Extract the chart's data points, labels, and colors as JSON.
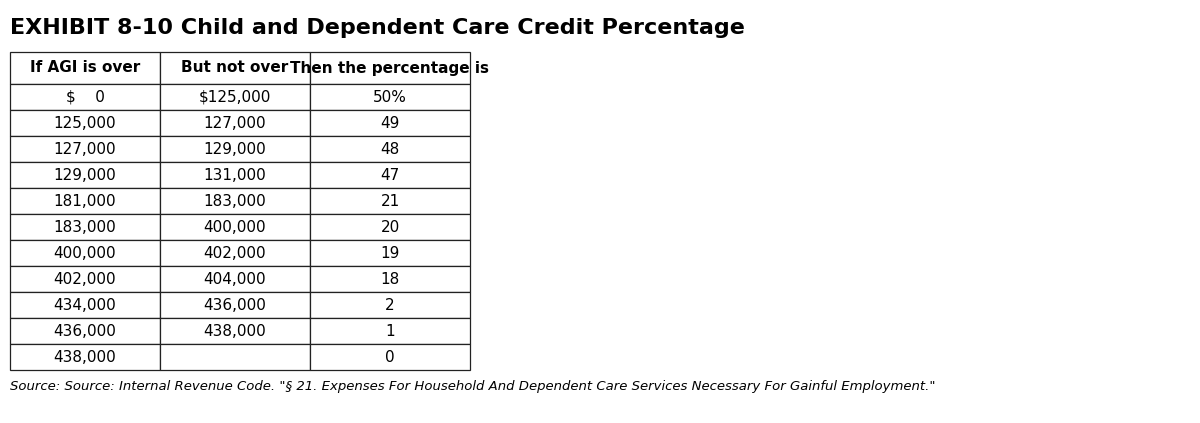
{
  "title": "EXHIBIT 8-10 Child and Dependent Care Credit Percentage",
  "headers": [
    "If AGI is over",
    "But not over",
    "Then the percentage is"
  ],
  "rows": [
    [
      "$    0",
      "$125,000",
      "50%"
    ],
    [
      "125,000",
      "127,000",
      "49"
    ],
    [
      "127,000",
      "129,000",
      "48"
    ],
    [
      "129,000",
      "131,000",
      "47"
    ],
    [
      "181,000",
      "183,000",
      "21"
    ],
    [
      "183,000",
      "400,000",
      "20"
    ],
    [
      "400,000",
      "402,000",
      "19"
    ],
    [
      "402,000",
      "404,000",
      "18"
    ],
    [
      "434,000",
      "436,000",
      "2"
    ],
    [
      "436,000",
      "438,000",
      "1"
    ],
    [
      "438,000",
      "",
      "0"
    ]
  ],
  "source": "Source: Source: Internal Revenue Code. \"§ 21. Expenses For Household And Dependent Care Services Necessary For Gainful Employment.\"",
  "title_fontsize": 16,
  "header_fontsize": 11,
  "cell_fontsize": 11,
  "source_fontsize": 9.5
}
